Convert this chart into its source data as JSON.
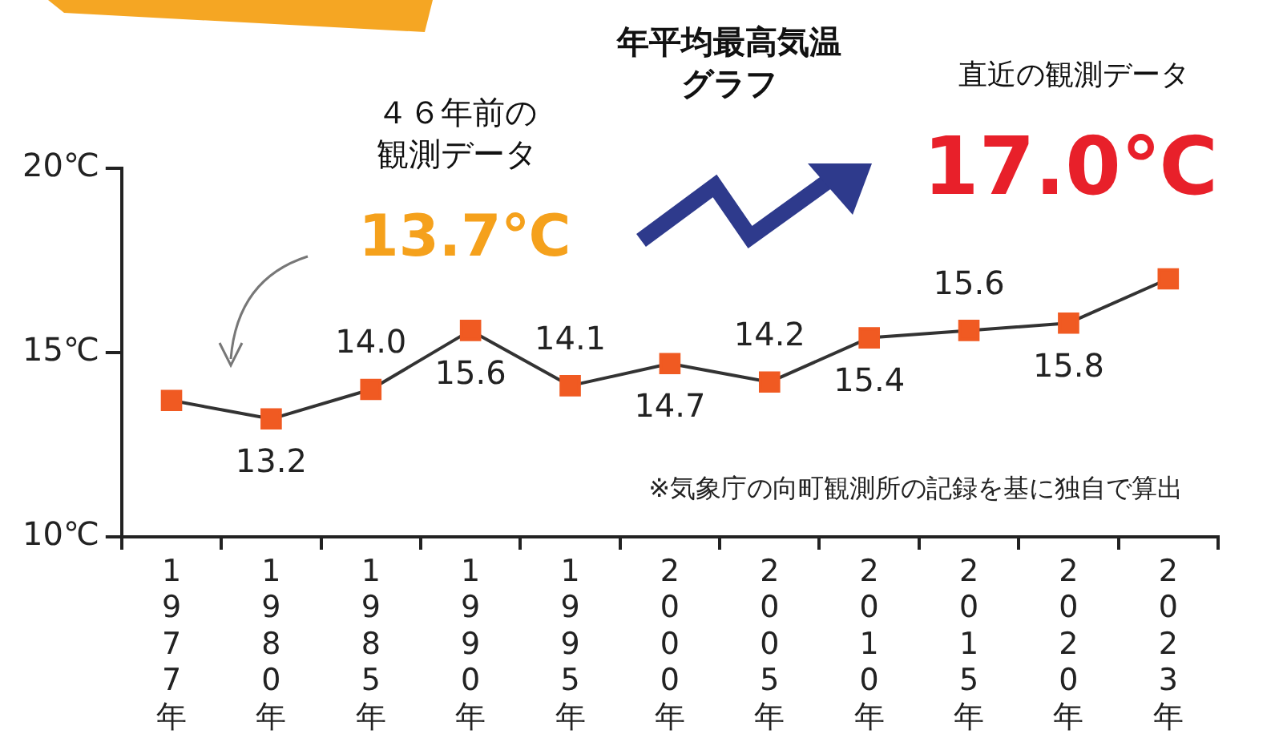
{
  "chart_data": {
    "type": "line",
    "title": "年平均最高気温グラフ",
    "categories": [
      "1977年",
      "1980年",
      "1985年",
      "1990年",
      "1995年",
      "2000年",
      "2005年",
      "2010年",
      "2015年",
      "2020年",
      "2023年"
    ],
    "series": [
      {
        "color": "#f05a22",
        "values": [
          13.7,
          13.2,
          14.0,
          15.6,
          14.1,
          14.7,
          14.2,
          15.4,
          15.6,
          15.8,
          17.0
        ],
        "value_labels": [
          null,
          "13.2",
          "14.0",
          "15.6",
          "14.1",
          "14.7",
          "14.2",
          "15.4",
          "15.6",
          "15.8",
          null
        ]
      }
    ],
    "ylim": [
      10,
      20
    ],
    "yticks": [
      {
        "value": 10,
        "label": "10℃"
      },
      {
        "value": 15,
        "label": "15℃"
      },
      {
        "value": 20,
        "label": "20℃"
      }
    ],
    "grid": false,
    "legend": false,
    "marker": "square",
    "line_style": "solid",
    "annotations": [
      "４６年前の観測データ",
      "13.7℃",
      "直近の観測データ",
      "17.0℃",
      "※気象庁の向町観測所の記録を基に独自で算出"
    ]
  }
}
